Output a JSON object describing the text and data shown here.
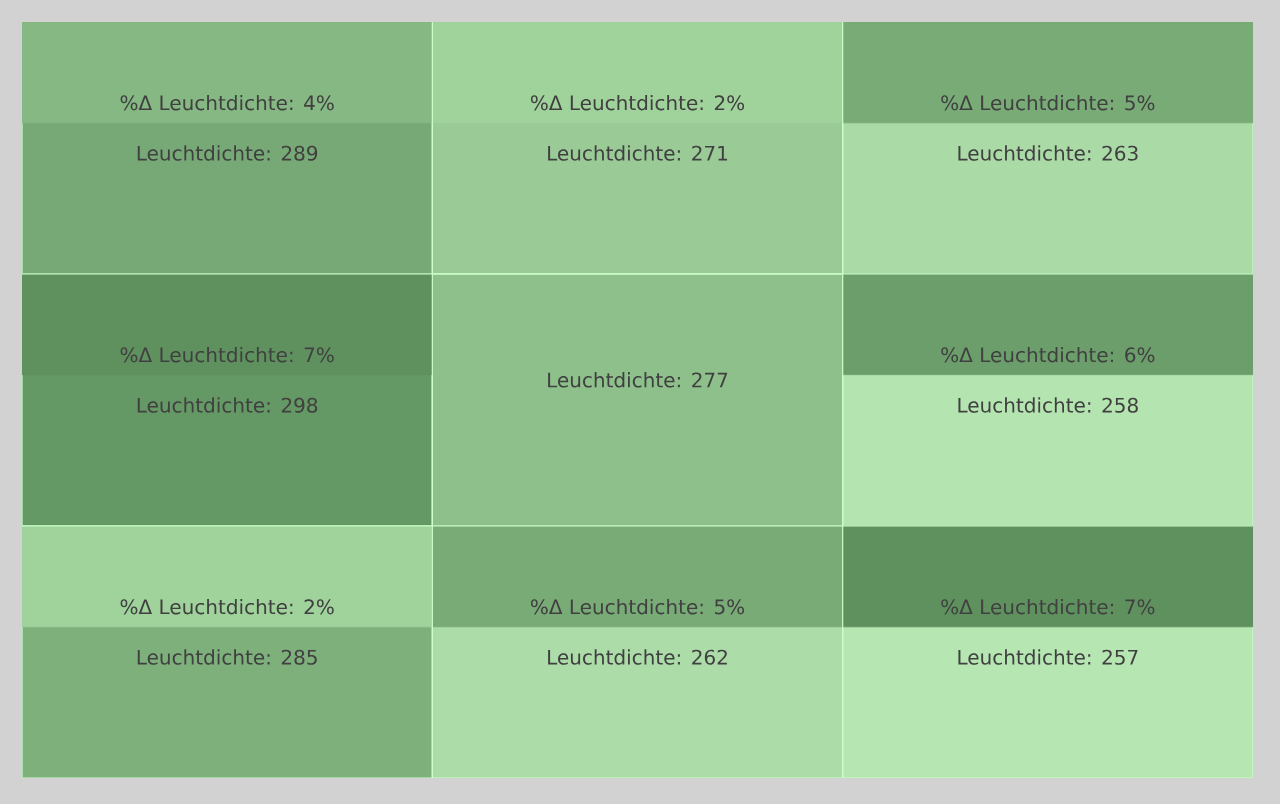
{
  "chart_data": [
    {
      "type": "heatmap",
      "categories": [
        null,
        null,
        null
      ],
      "y_categories": [
        null,
        null,
        null
      ],
      "cells": [
        [
          289,
          271,
          263
        ],
        [
          298,
          277,
          258
        ],
        [
          285,
          262,
          257
        ]
      ],
      "cell_labels": [
        [
          "Leuchtdichte:  289",
          "Leuchtdichte:  271",
          "Leuchtdichte:  263"
        ],
        [
          "Leuchtdichte:  298",
          "Leuchtdichte:  277",
          "Leuchtdichte:  258"
        ],
        [
          "Leuchtdichte:  285",
          "Leuchtdichte:  262",
          "Leuchtdichte:  257"
        ]
      ]
    },
    {
      "type": "heatmap",
      "categories": [
        null,
        null,
        null
      ],
      "y_categories": [
        null,
        null,
        null
      ],
      "cells": [
        [
          4,
          2,
          5
        ],
        [
          7,
          null,
          6
        ],
        [
          2,
          5,
          7
        ]
      ],
      "cell_labels": [
        [
          "%Δ Leuchtdichte:  4%",
          "%Δ Leuchtdichte:  2%",
          "%Δ Leuchtdichte:  5%"
        ],
        [
          "%Δ Leuchtdichte:  7%",
          null,
          "%Δ Leuchtdichte:  6%"
        ],
        [
          "%Δ Leuchtdichte:  2%",
          "%Δ Leuchtdichte:  5%",
          "%Δ Leuchtdichte:  7%"
        ]
      ]
    }
  ]
}
